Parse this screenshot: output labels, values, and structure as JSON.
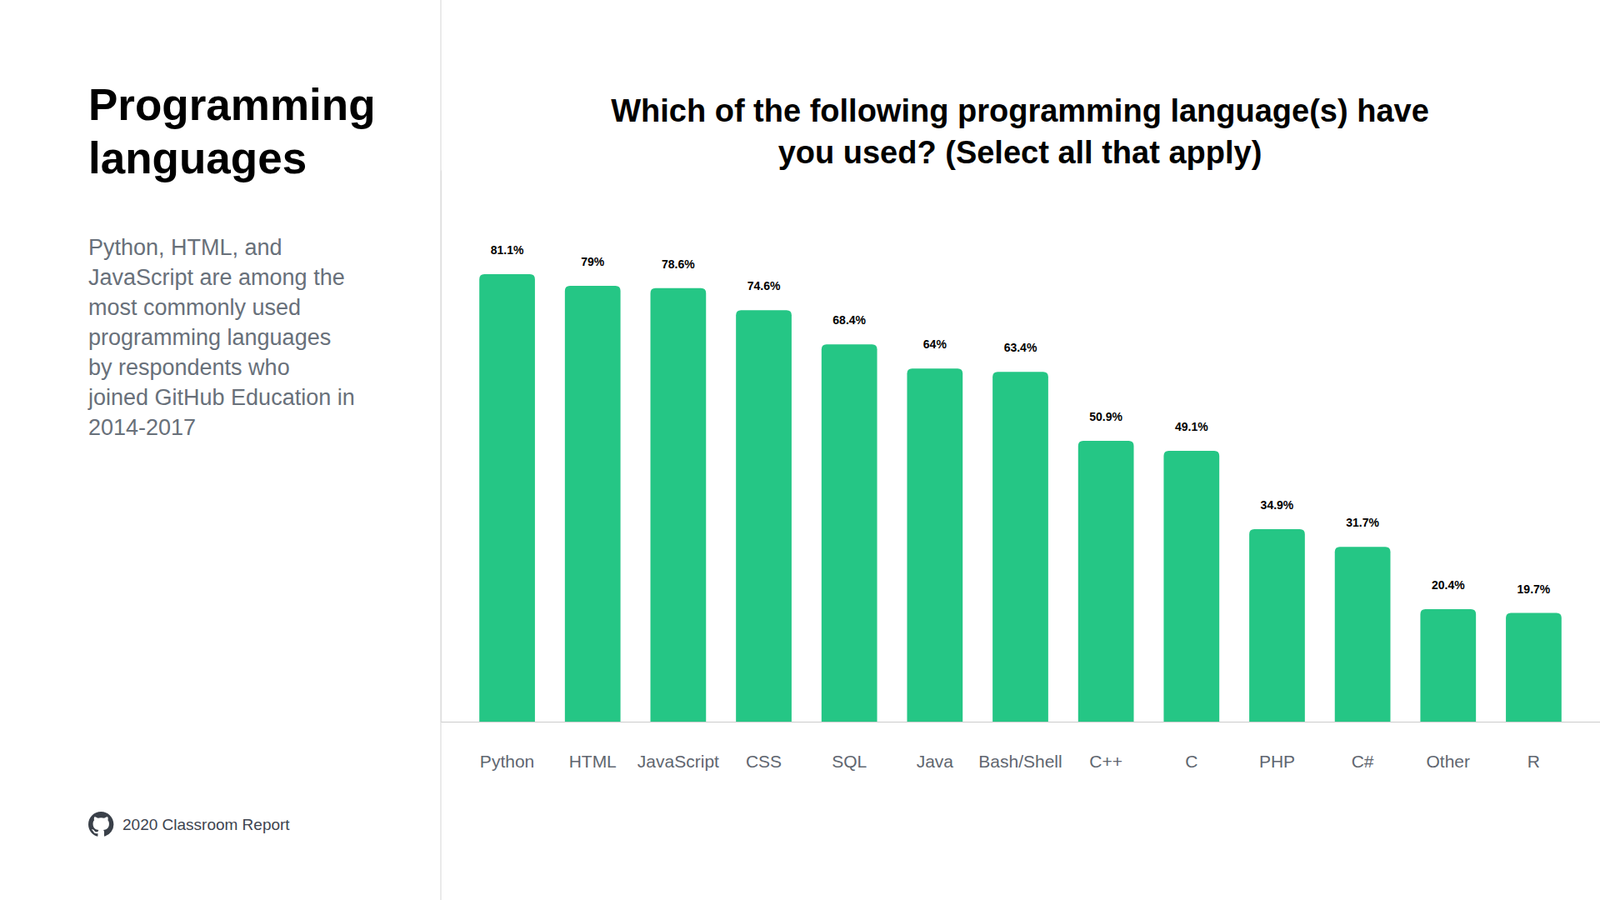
{
  "page": {
    "heading": "Programming\nlanguages",
    "description": "Python, HTML, and\nJavaScript are among the\nmost commonly used\nprogramming languages\nby respondents who\njoined GitHub Education in\n2014-2017",
    "footer": "2020 Classroom Report"
  },
  "chart_data": {
    "type": "bar",
    "title": "Which of the following programming language(s) have\nyou used? (Select all that apply)",
    "categories": [
      "Python",
      "HTML",
      "JavaScript",
      "CSS",
      "SQL",
      "Java",
      "Bash/Shell",
      "C++",
      "C",
      "PHP",
      "C#",
      "Other",
      "R"
    ],
    "values": [
      81.1,
      79,
      78.6,
      74.6,
      68.4,
      64,
      63.4,
      50.9,
      49.1,
      34.9,
      31.7,
      20.4,
      19.7
    ],
    "value_labels": [
      "81.1%",
      "79%",
      "78.6%",
      "74.6%",
      "68.4%",
      "64%",
      "63.4%",
      "50.9%",
      "49.1%",
      "34.9%",
      "31.7%",
      "20.4%",
      "19.7%"
    ],
    "color": "#25c685",
    "ylim": [
      0,
      100
    ],
    "yticks": [],
    "grid": false,
    "data_labels": true,
    "tick_labels": "x"
  }
}
